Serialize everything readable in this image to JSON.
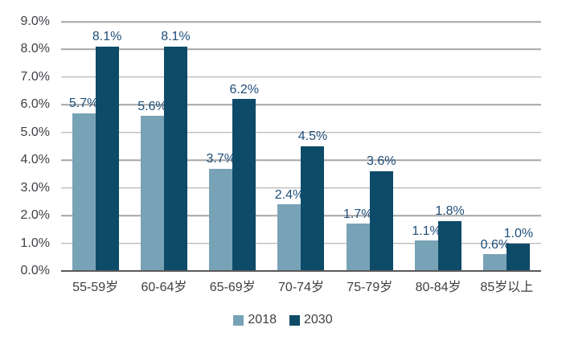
{
  "chart_data": {
    "type": "bar",
    "title": "",
    "xlabel": "",
    "ylabel": "",
    "grid": true,
    "legend_position": "bottom",
    "categories": [
      "55-59岁",
      "60-64岁",
      "65-69岁",
      "70-74岁",
      "75-79岁",
      "80-84岁",
      "85岁以上"
    ],
    "series": [
      {
        "name": "2018",
        "color": "#78A2B6",
        "values": [
          5.7,
          5.6,
          3.7,
          2.4,
          1.7,
          1.1,
          0.6
        ],
        "labels": [
          "5.7%",
          "5.6%",
          "3.7%",
          "2.4%",
          "1.7%",
          "1.1%",
          "0.6%"
        ]
      },
      {
        "name": "2030",
        "color": "#0D4B68",
        "values": [
          8.1,
          8.1,
          6.2,
          4.5,
          3.6,
          1.8,
          1.0
        ],
        "labels": [
          "8.1%",
          "8.1%",
          "6.2%",
          "4.5%",
          "3.6%",
          "1.8%",
          "1.0%"
        ]
      }
    ],
    "y_axis": {
      "min": 0,
      "max": 9,
      "step": 1,
      "tick_labels": [
        "0.0%",
        "1.0%",
        "2.0%",
        "3.0%",
        "4.0%",
        "5.0%",
        "6.0%",
        "7.0%",
        "8.0%",
        "9.0%"
      ]
    },
    "colors": {
      "background": "#FFFFFF",
      "gridline": "#A6A6A6",
      "axis_line": "#595959",
      "tick_label": "#3F3F46",
      "category_label": "#3F3F3F",
      "data_label": "#1F4E79",
      "legend_text": "#3F3F3F"
    }
  }
}
